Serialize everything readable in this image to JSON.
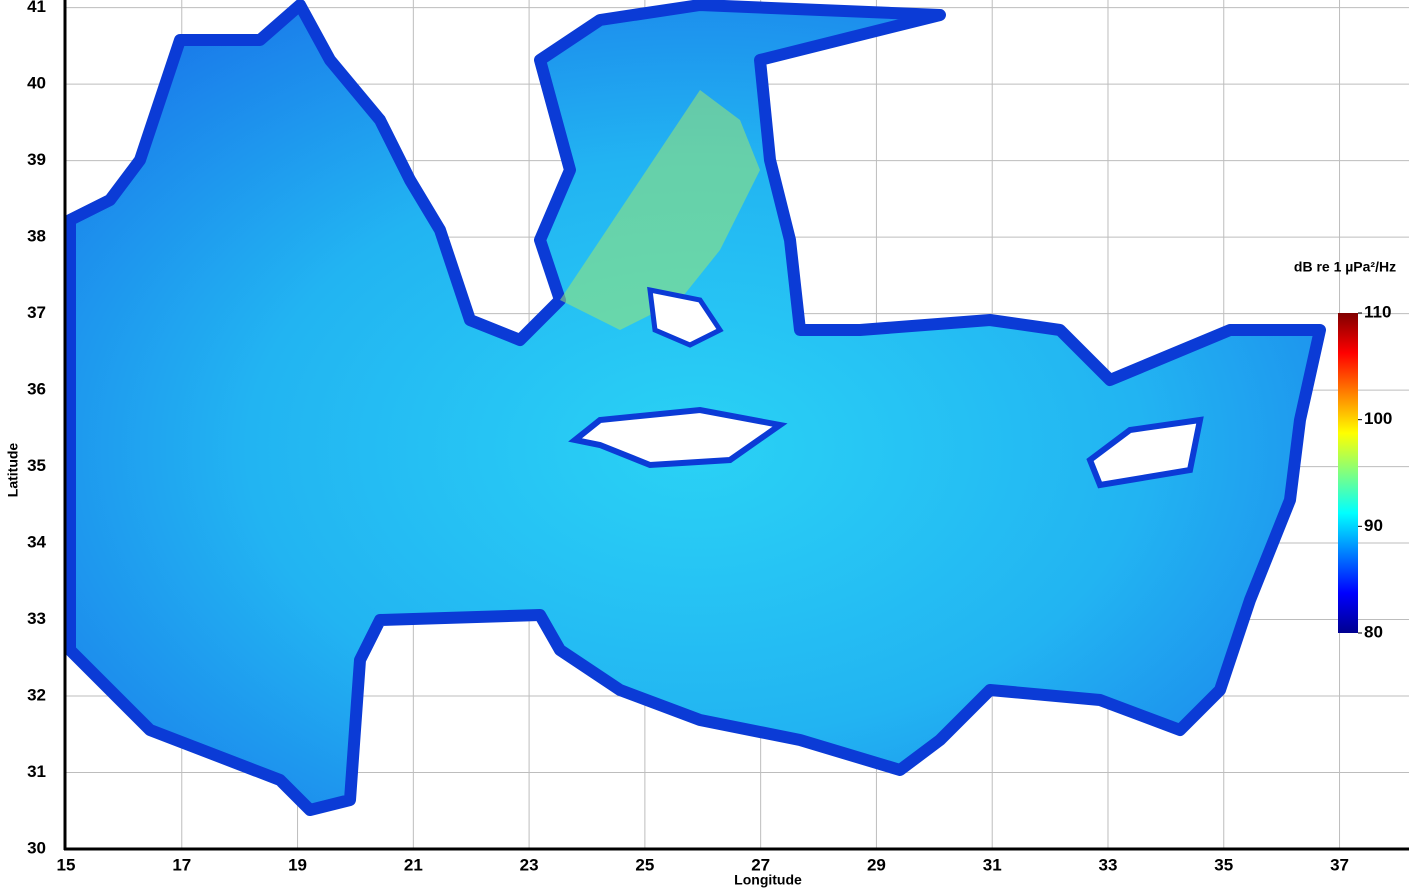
{
  "chart_data": {
    "type": "heatmap",
    "xlabel": "Longitude",
    "ylabel": "Latitude",
    "xlim": [
      15,
      38.2
    ],
    "ylim": [
      30,
      41.1
    ],
    "xticks": [
      15,
      17,
      19,
      21,
      23,
      25,
      27,
      29,
      31,
      33,
      35,
      37
    ],
    "yticks": [
      30,
      31,
      32,
      33,
      34,
      35,
      36,
      37,
      38,
      39,
      40,
      41
    ],
    "grid": true,
    "colorbar": {
      "label": "dB re 1 µPa²/Hz",
      "lim": [
        80,
        110
      ],
      "ticks": [
        80,
        90,
        100,
        110
      ],
      "colors": [
        "#00008f",
        "#0000ff",
        "#0080ff",
        "#00ffff",
        "#80ff80",
        "#ffff00",
        "#ff8000",
        "#ff0000",
        "#800000"
      ]
    }
  }
}
